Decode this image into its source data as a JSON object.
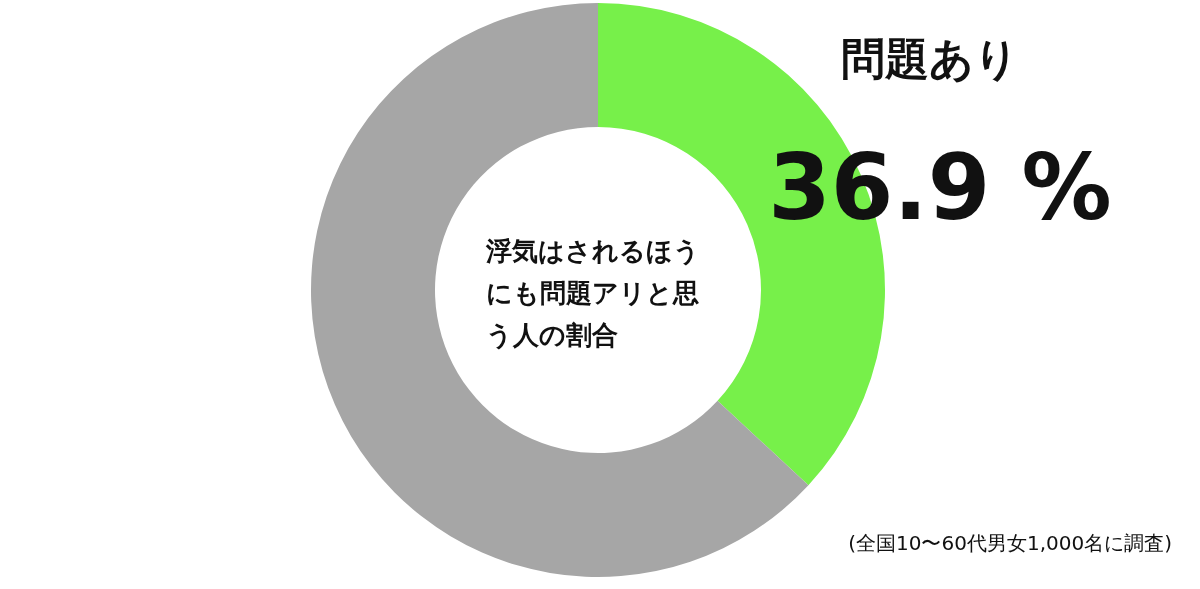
{
  "chart_data": {
    "type": "donut",
    "title": "浮気はされるほうにも問題アリと思う人の割合",
    "categories": [
      "問題あり",
      null
    ],
    "values": [
      36.9,
      63.1
    ],
    "colors": [
      "#77f04a",
      "#a6a6a6"
    ],
    "value_labels": [
      "36.9 %",
      null
    ],
    "annotations": [
      "(全国10〜60代男女1,000名に調査)"
    ]
  }
}
